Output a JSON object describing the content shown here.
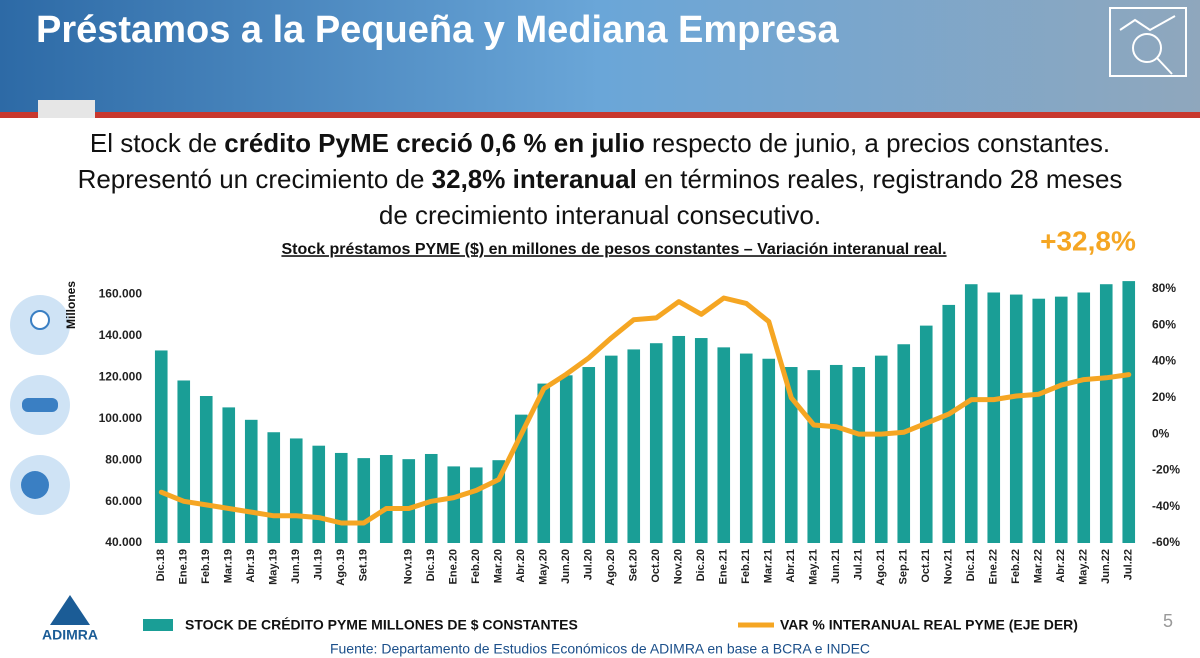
{
  "header": {
    "title": "Préstamos a la Pequeña y Mediana Empresa"
  },
  "summary": [
    [
      {
        "text": "El stock de ",
        "bold": false
      },
      {
        "text": "crédito PyME creció 0,6 % en julio",
        "bold": true
      },
      {
        "text": " respecto de junio, a precios constantes.",
        "bold": false
      }
    ],
    [
      {
        "text": "Representó un crecimiento de ",
        "bold": false
      },
      {
        "text": "32,8% interanual",
        "bold": true
      },
      {
        "text": " en términos reales, registrando 28 meses",
        "bold": false
      }
    ],
    [
      {
        "text": "de crecimiento interanual consecutivo.",
        "bold": false
      }
    ]
  ],
  "chart_data": {
    "type": "bar_line",
    "title": "Stock préstamos PYME ($) en millones de pesos constantes – Variación interanual real.",
    "annotation": "+32,8%",
    "y_label": "Millones",
    "categories": [
      "Dic.18",
      "Ene.19",
      "Feb.19",
      "Mar.19",
      "Abr.19",
      "May.19",
      "Jun.19",
      "Jul.19",
      "Ago.19",
      "Set.19",
      null,
      "Nov.19",
      "Dic.19",
      "Ene.20",
      "Feb.20",
      "Mar.20",
      "Abr.20",
      "May.20",
      "Jun.20",
      "Jul.20",
      "Ago.20",
      "Set.20",
      "Oct.20",
      "Nov.20",
      "Dic.20",
      "Ene.21",
      "Feb.21",
      "Mar.21",
      "Abr.21",
      "May.21",
      "Jun.21",
      "Jul.21",
      "Ago.21",
      "Sep.21",
      "Oct.21",
      "Nov.21",
      "Dic.21",
      "Ene.22",
      "Feb.22",
      "Mar.22",
      "Abr.22",
      "May.22",
      "Jun.22",
      "Jul.22"
    ],
    "series": [
      {
        "name": "STOCK DE CRÉDITO PYME MILLONES DE $ CONSTANTES",
        "color": "#1a9e96",
        "type": "bar",
        "values": [
          133000,
          118500,
          111000,
          105500,
          99500,
          93500,
          90500,
          87000,
          83500,
          81000,
          82500,
          80500,
          83000,
          77000,
          76500,
          80000,
          102000,
          117000,
          121000,
          125000,
          130500,
          133500,
          136500,
          140000,
          139000,
          134500,
          131500,
          129000,
          125000,
          123500,
          126000,
          125000,
          130500,
          136000,
          145000,
          155000,
          165000,
          161000,
          160000,
          158000,
          159000,
          161000,
          165000,
          166500
        ]
      },
      {
        "name": "VAR % INTERANUAL REAL PYME (EJE DER)",
        "color": "#f5a623",
        "type": "line",
        "axis": "y2",
        "values": [
          -32,
          -37,
          -39,
          -41,
          -43,
          -45,
          -45,
          -46,
          -49,
          -49,
          -41,
          -41,
          -37,
          -35,
          -31,
          -25,
          0,
          25,
          33,
          42,
          53,
          63,
          64,
          73,
          66,
          75,
          72,
          62,
          20,
          5,
          4,
          0,
          0,
          1,
          6,
          11,
          19,
          19,
          21,
          22,
          27,
          30,
          31,
          32.8
        ]
      }
    ],
    "ylim": [
      40000,
      168000
    ],
    "yticks": [
      {
        "value": 40000,
        "label": "40.000"
      },
      {
        "value": 60000,
        "label": "60.000"
      },
      {
        "value": 80000,
        "label": "80.000"
      },
      {
        "value": 100000,
        "label": "100.000"
      },
      {
        "value": 120000,
        "label": "120.000"
      },
      {
        "value": 140000,
        "label": "140.000"
      },
      {
        "value": 160000,
        "label": "160.000"
      }
    ],
    "y2lim": [
      -60,
      86
    ],
    "y2ticks": [
      {
        "value": -60,
        "label": "-60%"
      },
      {
        "value": -40,
        "label": "-40%"
      },
      {
        "value": -20,
        "label": "-20%"
      },
      {
        "value": 0,
        "label": "0%"
      },
      {
        "value": 20,
        "label": "20%"
      },
      {
        "value": 40,
        "label": "40%"
      },
      {
        "value": 60,
        "label": "60%"
      },
      {
        "value": 80,
        "label": "80%"
      }
    ],
    "grid": false
  },
  "footer": {
    "source": "Fuente: Departamento de Estudios Económicos de ADIMRA en base a BCRA e INDEC",
    "page": "5",
    "logo": "ADIMRA"
  }
}
